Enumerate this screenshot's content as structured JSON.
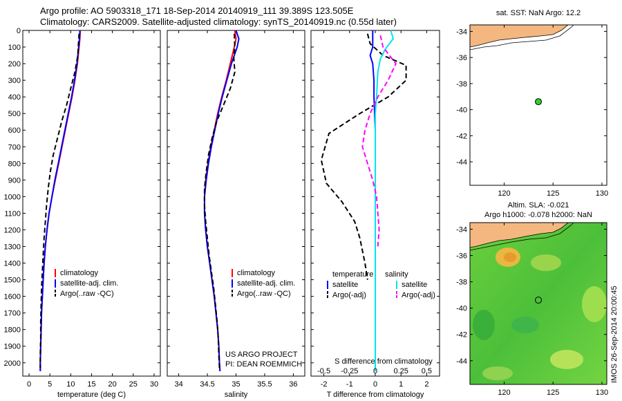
{
  "header": {
    "line1": "Argo profile: AO 5903318_171 18-Sep-2014 20140919_111 39.389S 123.505E",
    "line2": "Climatology: CARS2009. Satellite-adjusted climatology: synTS_20140919.nc (0.55d later)"
  },
  "depth_ticks": [
    "0",
    "100",
    "200",
    "300",
    "400",
    "500",
    "600",
    "700",
    "800",
    "900",
    "1000",
    "1100",
    "1200",
    "1300",
    "1400",
    "1500",
    "1600",
    "1700",
    "1800",
    "1900",
    "2000"
  ],
  "colors": {
    "red": "#ff0000",
    "blue": "#0000ff",
    "black": "#000000",
    "cyan": "#00e5ee",
    "magenta": "#ff00ff",
    "land": "#f5b780",
    "marker": "#33cc33"
  },
  "chart_data": [
    {
      "type": "line",
      "xlabel": "temperature (deg C)",
      "xlim": [
        -1.5,
        31.5
      ],
      "ylim": [
        2080,
        0
      ],
      "xticks": [
        "0",
        "5",
        "10",
        "15",
        "20",
        "25",
        "30"
      ],
      "legend": [
        "climatology",
        "satellite-adj. clim.",
        "Argo(..raw -QC)"
      ],
      "series": [
        {
          "name": "climatology",
          "color": "#ff0000",
          "style": "solid",
          "points": [
            [
              12.3,
              0
            ],
            [
              12.2,
              50
            ],
            [
              12.0,
              100
            ],
            [
              11.6,
              200
            ],
            [
              11.0,
              300
            ],
            [
              10.3,
              400
            ],
            [
              9.5,
              500
            ],
            [
              8.7,
              600
            ],
            [
              7.9,
              700
            ],
            [
              7.1,
              800
            ],
            [
              6.3,
              900
            ],
            [
              5.5,
              1000
            ],
            [
              4.8,
              1100
            ],
            [
              4.3,
              1200
            ],
            [
              3.9,
              1300
            ],
            [
              3.6,
              1400
            ],
            [
              3.4,
              1500
            ],
            [
              3.2,
              1600
            ],
            [
              3.0,
              1700
            ],
            [
              2.9,
              1800
            ],
            [
              2.8,
              1900
            ],
            [
              2.7,
              2000
            ],
            [
              2.7,
              2050
            ]
          ]
        },
        {
          "name": "satellite-adj. clim.",
          "color": "#0000ff",
          "style": "solid",
          "points": [
            [
              12.2,
              0
            ],
            [
              12.1,
              50
            ],
            [
              11.9,
              100
            ],
            [
              11.5,
              200
            ],
            [
              10.9,
              300
            ],
            [
              10.2,
              400
            ],
            [
              9.4,
              500
            ],
            [
              8.6,
              600
            ],
            [
              7.8,
              700
            ],
            [
              7.0,
              800
            ],
            [
              6.2,
              900
            ],
            [
              5.5,
              1000
            ],
            [
              4.8,
              1100
            ],
            [
              4.3,
              1200
            ],
            [
              3.9,
              1300
            ],
            [
              3.6,
              1400
            ],
            [
              3.4,
              1500
            ],
            [
              3.2,
              1600
            ],
            [
              3.0,
              1700
            ],
            [
              2.9,
              1800
            ],
            [
              2.8,
              1900
            ],
            [
              2.7,
              2000
            ],
            [
              2.7,
              2050
            ]
          ]
        },
        {
          "name": "Argo(..raw -QC)",
          "color": "#000000",
          "style": "dashed",
          "points": [
            [
              12.0,
              20
            ],
            [
              11.8,
              100
            ],
            [
              11.7,
              150
            ],
            [
              11.0,
              250
            ],
            [
              10.0,
              350
            ],
            [
              9.0,
              450
            ],
            [
              7.8,
              550
            ],
            [
              6.8,
              650
            ],
            [
              5.8,
              750
            ],
            [
              5.1,
              850
            ],
            [
              4.6,
              950
            ],
            [
              4.2,
              1050
            ],
            [
              3.9,
              1150
            ],
            [
              3.6,
              1250
            ],
            [
              3.4,
              1350
            ],
            [
              3.2,
              1450
            ],
            [
              3.0,
              1550
            ],
            [
              2.9,
              1650
            ],
            [
              2.8,
              1750
            ],
            [
              2.8,
              1850
            ],
            [
              2.7,
              1950
            ],
            [
              2.7,
              2030
            ]
          ]
        }
      ]
    },
    {
      "type": "line",
      "xlabel": "salinity",
      "xlim": [
        33.8,
        36.2
      ],
      "ylim": [
        2080,
        0
      ],
      "xticks": [
        "34",
        "34.5",
        "35",
        "35.5",
        "36"
      ],
      "legend": [
        "climatology",
        "satellite-adj. clim.",
        "Argo(..raw -QC)"
      ],
      "annotations": [
        "US ARGO PROJECT",
        "PI: DEAN ROEMMICH"
      ],
      "series": [
        {
          "name": "climatology",
          "color": "#ff0000",
          "style": "solid",
          "points": [
            [
              34.98,
              0
            ],
            [
              35.0,
              50
            ],
            [
              34.97,
              100
            ],
            [
              34.9,
              200
            ],
            [
              34.83,
              300
            ],
            [
              34.75,
              400
            ],
            [
              34.68,
              500
            ],
            [
              34.62,
              600
            ],
            [
              34.56,
              700
            ],
            [
              34.51,
              800
            ],
            [
              34.47,
              900
            ],
            [
              34.45,
              1000
            ],
            [
              34.45,
              1100
            ],
            [
              34.47,
              1200
            ],
            [
              34.5,
              1300
            ],
            [
              34.54,
              1400
            ],
            [
              34.58,
              1500
            ],
            [
              34.62,
              1600
            ],
            [
              34.65,
              1700
            ],
            [
              34.68,
              1800
            ],
            [
              34.7,
              1900
            ],
            [
              34.71,
              2000
            ],
            [
              34.72,
              2050
            ]
          ]
        },
        {
          "name": "satellite-adj. clim.",
          "color": "#0000ff",
          "style": "solid",
          "points": [
            [
              35.0,
              0
            ],
            [
              35.05,
              50
            ],
            [
              35.02,
              100
            ],
            [
              34.92,
              200
            ],
            [
              34.84,
              300
            ],
            [
              34.76,
              400
            ],
            [
              34.69,
              500
            ],
            [
              34.63,
              600
            ],
            [
              34.57,
              700
            ],
            [
              34.52,
              800
            ],
            [
              34.48,
              900
            ],
            [
              34.45,
              1000
            ],
            [
              34.45,
              1100
            ],
            [
              34.47,
              1200
            ],
            [
              34.5,
              1300
            ],
            [
              34.54,
              1400
            ],
            [
              34.58,
              1500
            ],
            [
              34.62,
              1600
            ],
            [
              34.65,
              1700
            ],
            [
              34.68,
              1800
            ],
            [
              34.7,
              1900
            ],
            [
              34.71,
              2000
            ],
            [
              34.72,
              2050
            ]
          ]
        },
        {
          "name": "Argo(..raw -QC)",
          "color": "#000000",
          "style": "dashed",
          "points": [
            [
              34.97,
              20
            ],
            [
              34.98,
              100
            ],
            [
              34.96,
              160
            ],
            [
              34.98,
              250
            ],
            [
              34.9,
              350
            ],
            [
              34.78,
              450
            ],
            [
              34.66,
              550
            ],
            [
              34.58,
              650
            ],
            [
              34.52,
              750
            ],
            [
              34.48,
              850
            ],
            [
              34.45,
              950
            ],
            [
              34.45,
              1050
            ],
            [
              34.47,
              1150
            ],
            [
              34.5,
              1250
            ],
            [
              34.53,
              1350
            ],
            [
              34.57,
              1450
            ],
            [
              34.61,
              1550
            ],
            [
              34.64,
              1650
            ],
            [
              34.67,
              1750
            ],
            [
              34.69,
              1850
            ],
            [
              34.7,
              1950
            ],
            [
              34.71,
              2030
            ]
          ]
        }
      ]
    },
    {
      "type": "line",
      "xlabel": "T difference from climatology",
      "top_xlabel": "S difference from climatology",
      "xlim": [
        -2.5,
        2.5
      ],
      "ylim": [
        2080,
        0
      ],
      "xticks": [
        "-2",
        "-1",
        "0",
        "1",
        "2"
      ],
      "top_xticks": [
        "-0.5",
        "-0.25",
        "0",
        "0.25",
        "0.5"
      ],
      "legend": {
        "temperature": [
          "satellite",
          "Argo(-adj)"
        ],
        "salinity": [
          "satellite",
          "Argo(-adj)"
        ],
        "temperature_title": "temperature",
        "salinity_title": "salinity"
      },
      "series": [
        {
          "name": "satellite",
          "color": "#0000ff",
          "style": "solid",
          "points": [
            [
              -0.1,
              0
            ],
            [
              -0.1,
              100
            ],
            [
              -0.2,
              150
            ],
            [
              -0.1,
              200
            ],
            [
              -0.05,
              300
            ],
            [
              -0.05,
              400
            ],
            [
              0,
              600
            ],
            [
              0,
              2050
            ]
          ]
        },
        {
          "name": "Argo(-adj)",
          "color": "#000000",
          "style": "dashed",
          "points": [
            [
              -0.3,
              20
            ],
            [
              -0.2,
              80
            ],
            [
              0.3,
              150
            ],
            [
              1.2,
              210
            ],
            [
              1.2,
              300
            ],
            [
              0.5,
              400
            ],
            [
              -0.6,
              500
            ],
            [
              -1.8,
              620
            ],
            [
              -2.1,
              780
            ],
            [
              -1.9,
              920
            ],
            [
              -1.3,
              1030
            ],
            [
              -0.8,
              1150
            ],
            [
              -0.6,
              1250
            ],
            [
              -0.4,
              1400
            ],
            [
              -0.3,
              1500
            ]
          ]
        },
        {
          "name": "satellite",
          "color": "#00e5ee",
          "style": "solid",
          "points": [
            [
              0.6,
              0
            ],
            [
              0.7,
              50
            ],
            [
              0.4,
              110
            ],
            [
              0.2,
              170
            ],
            [
              0.1,
              250
            ],
            [
              0.05,
              400
            ],
            [
              0,
              500
            ],
            [
              0,
              2050
            ]
          ]
        },
        {
          "name": "Argo(-adj)",
          "color": "#ff00ff",
          "style": "dashed",
          "points": [
            [
              0.2,
              30
            ],
            [
              0.3,
              100
            ],
            [
              0.8,
              200
            ],
            [
              0.5,
              300
            ],
            [
              0.1,
              400
            ],
            [
              -0.2,
              500
            ],
            [
              -0.4,
              600
            ],
            [
              -0.5,
              700
            ],
            [
              -0.3,
              800
            ],
            [
              -0.1,
              900
            ],
            [
              0.05,
              1000
            ],
            [
              0.1,
              1100
            ],
            [
              0.15,
              1200
            ],
            [
              0.1,
              1300
            ]
          ]
        }
      ]
    }
  ],
  "map_top": {
    "title": "sat. SST: NaN Argo: 12.2",
    "xticks": [
      "120",
      "125",
      "130"
    ],
    "yticks": [
      "-34",
      "-36",
      "-38",
      "-40",
      "-42",
      "-44"
    ],
    "xlim": [
      116.5,
      130.5
    ],
    "ylim": [
      -45.8,
      -33.5
    ],
    "marker": [
      123.5,
      -39.39
    ]
  },
  "map_bottom": {
    "title1": "Altim. SLA: -0.021",
    "title2": "Argo h1000: -0.078 h2000: NaN",
    "xticks": [
      "120",
      "125",
      "130"
    ],
    "yticks": [
      "-34",
      "-36",
      "-38",
      "-40",
      "-42",
      "-44"
    ],
    "xlim": [
      116.5,
      130.5
    ],
    "ylim": [
      -45.8,
      -33.5
    ],
    "marker": [
      123.5,
      -39.39
    ],
    "side_label": "IMOS 26-Sep-2014 20:00:45"
  }
}
